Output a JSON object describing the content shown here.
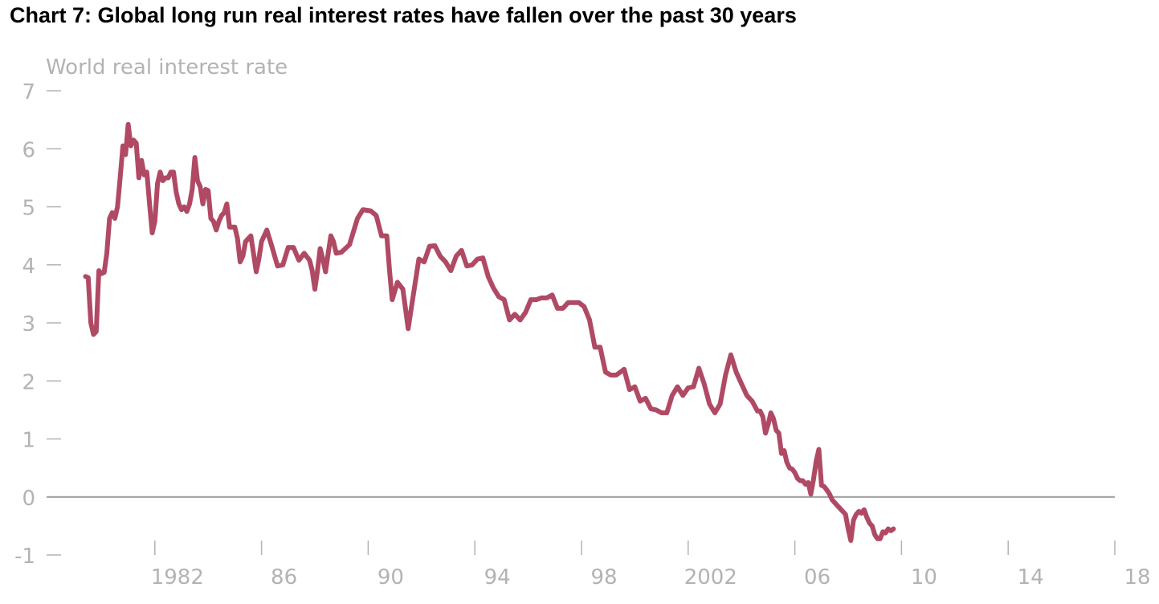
{
  "title": "Chart 7:  Global long run real interest rates have fallen over the past 30 years",
  "chart_data": {
    "type": "line",
    "ylabel": "World real interest rate",
    "ylim": [
      -1,
      7
    ],
    "yticks": [
      7,
      6,
      5,
      4,
      3,
      2,
      1,
      0,
      -1
    ],
    "xlim": [
      1978,
      2018
    ],
    "xticks": [
      {
        "value": 1982,
        "label": "1982"
      },
      {
        "value": 1986,
        "label": "86"
      },
      {
        "value": 1990,
        "label": "90"
      },
      {
        "value": 1994,
        "label": "94"
      },
      {
        "value": 1998,
        "label": "98"
      },
      {
        "value": 2002,
        "label": "2002"
      },
      {
        "value": 2006,
        "label": "06"
      },
      {
        "value": 2010,
        "label": "10"
      },
      {
        "value": 2014,
        "label": "14"
      },
      {
        "value": 2018,
        "label": "18"
      }
    ],
    "zero_line": true,
    "colors": {
      "line": "#b04a64",
      "zero_line": "#999999",
      "ticks": "#b3b3b3"
    },
    "series": [
      {
        "name": "",
        "points": [
          [
            1979.4,
            3.8
          ],
          [
            1979.5,
            3.78
          ],
          [
            1979.6,
            3.0
          ],
          [
            1979.7,
            2.8
          ],
          [
            1979.8,
            2.85
          ],
          [
            1979.9,
            3.9
          ],
          [
            1980.0,
            3.85
          ],
          [
            1980.1,
            3.87
          ],
          [
            1980.2,
            4.2
          ],
          [
            1980.3,
            4.8
          ],
          [
            1980.4,
            4.9
          ],
          [
            1980.5,
            4.8
          ],
          [
            1980.6,
            5.0
          ],
          [
            1980.7,
            5.5
          ],
          [
            1980.8,
            6.05
          ],
          [
            1980.9,
            5.9
          ],
          [
            1981.0,
            6.42
          ],
          [
            1981.1,
            6.05
          ],
          [
            1981.2,
            6.15
          ],
          [
            1981.3,
            6.1
          ],
          [
            1981.4,
            5.5
          ],
          [
            1981.5,
            5.8
          ],
          [
            1981.6,
            5.55
          ],
          [
            1981.7,
            5.6
          ],
          [
            1981.8,
            5.05
          ],
          [
            1981.9,
            4.55
          ],
          [
            1982.0,
            4.75
          ],
          [
            1982.1,
            5.4
          ],
          [
            1982.2,
            5.6
          ],
          [
            1982.3,
            5.45
          ],
          [
            1982.4,
            5.5
          ],
          [
            1982.5,
            5.5
          ],
          [
            1982.6,
            5.6
          ],
          [
            1982.7,
            5.6
          ],
          [
            1982.8,
            5.25
          ],
          [
            1982.9,
            5.05
          ],
          [
            1983.0,
            4.95
          ],
          [
            1983.1,
            5.0
          ],
          [
            1983.2,
            4.92
          ],
          [
            1983.3,
            5.05
          ],
          [
            1983.4,
            5.3
          ],
          [
            1983.5,
            5.85
          ],
          [
            1983.6,
            5.45
          ],
          [
            1983.7,
            5.35
          ],
          [
            1983.8,
            5.05
          ],
          [
            1983.9,
            5.3
          ],
          [
            1984.0,
            5.28
          ],
          [
            1984.1,
            4.8
          ],
          [
            1984.2,
            4.75
          ],
          [
            1984.3,
            4.6
          ],
          [
            1984.4,
            4.75
          ],
          [
            1984.5,
            4.85
          ],
          [
            1984.6,
            4.9
          ],
          [
            1984.7,
            5.05
          ],
          [
            1984.8,
            4.65
          ],
          [
            1984.9,
            4.65
          ],
          [
            1985.0,
            4.65
          ],
          [
            1985.1,
            4.45
          ],
          [
            1985.2,
            4.05
          ],
          [
            1985.3,
            4.15
          ],
          [
            1985.4,
            4.4
          ],
          [
            1985.5,
            4.45
          ],
          [
            1985.6,
            4.5
          ],
          [
            1985.7,
            4.2
          ],
          [
            1985.8,
            3.88
          ],
          [
            1985.9,
            4.1
          ],
          [
            1986.0,
            4.4
          ],
          [
            1986.2,
            4.6
          ],
          [
            1986.4,
            4.3
          ],
          [
            1986.6,
            3.98
          ],
          [
            1986.8,
            4.0
          ],
          [
            1987.0,
            4.3
          ],
          [
            1987.2,
            4.3
          ],
          [
            1987.4,
            4.08
          ],
          [
            1987.6,
            4.2
          ],
          [
            1987.8,
            4.08
          ],
          [
            1987.9,
            3.9
          ],
          [
            1988.0,
            3.58
          ],
          [
            1988.1,
            3.9
          ],
          [
            1988.2,
            4.28
          ],
          [
            1988.3,
            4.1
          ],
          [
            1988.4,
            3.88
          ],
          [
            1988.5,
            4.2
          ],
          [
            1988.6,
            4.5
          ],
          [
            1988.7,
            4.4
          ],
          [
            1988.8,
            4.2
          ],
          [
            1989.0,
            4.22
          ],
          [
            1989.3,
            4.35
          ],
          [
            1989.6,
            4.8
          ],
          [
            1989.8,
            4.95
          ],
          [
            1990.1,
            4.93
          ],
          [
            1990.3,
            4.85
          ],
          [
            1990.5,
            4.5
          ],
          [
            1990.7,
            4.5
          ],
          [
            1990.8,
            3.9
          ],
          [
            1990.9,
            3.4
          ],
          [
            1991.1,
            3.7
          ],
          [
            1991.3,
            3.58
          ],
          [
            1991.5,
            2.9
          ],
          [
            1991.7,
            3.5
          ],
          [
            1991.9,
            4.1
          ],
          [
            1992.1,
            4.05
          ],
          [
            1992.3,
            4.32
          ],
          [
            1992.5,
            4.33
          ],
          [
            1992.7,
            4.15
          ],
          [
            1992.9,
            4.05
          ],
          [
            1993.1,
            3.9
          ],
          [
            1993.3,
            4.15
          ],
          [
            1993.5,
            4.25
          ],
          [
            1993.7,
            3.98
          ],
          [
            1993.9,
            4.0
          ],
          [
            1994.1,
            4.1
          ],
          [
            1994.3,
            4.12
          ],
          [
            1994.5,
            3.8
          ],
          [
            1994.7,
            3.6
          ],
          [
            1994.9,
            3.45
          ],
          [
            1995.1,
            3.4
          ],
          [
            1995.3,
            3.05
          ],
          [
            1995.5,
            3.15
          ],
          [
            1995.7,
            3.05
          ],
          [
            1995.9,
            3.18
          ],
          [
            1996.1,
            3.4
          ],
          [
            1996.3,
            3.4
          ],
          [
            1996.5,
            3.43
          ],
          [
            1996.7,
            3.43
          ],
          [
            1996.9,
            3.48
          ],
          [
            1997.1,
            3.25
          ],
          [
            1997.3,
            3.25
          ],
          [
            1997.5,
            3.35
          ],
          [
            1997.7,
            3.35
          ],
          [
            1997.9,
            3.35
          ],
          [
            1998.1,
            3.28
          ],
          [
            1998.3,
            3.05
          ],
          [
            1998.5,
            2.58
          ],
          [
            1998.7,
            2.58
          ],
          [
            1998.9,
            2.15
          ],
          [
            1999.1,
            2.1
          ],
          [
            1999.3,
            2.1
          ],
          [
            1999.6,
            2.2
          ],
          [
            1999.8,
            1.85
          ],
          [
            2000.0,
            1.9
          ],
          [
            2000.2,
            1.65
          ],
          [
            2000.4,
            1.7
          ],
          [
            2000.6,
            1.52
          ],
          [
            2000.8,
            1.5
          ],
          [
            2001.0,
            1.45
          ],
          [
            2001.2,
            1.45
          ],
          [
            2001.4,
            1.75
          ],
          [
            2001.6,
            1.9
          ],
          [
            2001.8,
            1.75
          ],
          [
            2002.0,
            1.88
          ],
          [
            2002.2,
            1.9
          ],
          [
            2002.4,
            2.22
          ],
          [
            2002.6,
            1.95
          ],
          [
            2002.8,
            1.6
          ],
          [
            2003.0,
            1.45
          ],
          [
            2003.2,
            1.6
          ],
          [
            2003.4,
            2.1
          ],
          [
            2003.6,
            2.45
          ],
          [
            2003.8,
            2.15
          ],
          [
            2004.0,
            1.95
          ],
          [
            2004.2,
            1.75
          ],
          [
            2004.4,
            1.65
          ],
          [
            2004.6,
            1.48
          ],
          [
            2004.7,
            1.48
          ],
          [
            2004.8,
            1.38
          ],
          [
            2004.9,
            1.1
          ],
          [
            2005.0,
            1.25
          ],
          [
            2005.1,
            1.45
          ],
          [
            2005.2,
            1.35
          ],
          [
            2005.3,
            1.15
          ],
          [
            2005.4,
            1.1
          ],
          [
            2005.5,
            0.75
          ],
          [
            2005.6,
            0.8
          ],
          [
            2005.7,
            0.6
          ],
          [
            2005.8,
            0.5
          ],
          [
            2005.9,
            0.48
          ],
          [
            2006.0,
            0.42
          ],
          [
            2006.1,
            0.32
          ],
          [
            2006.2,
            0.28
          ],
          [
            2006.3,
            0.28
          ],
          [
            2006.4,
            0.22
          ],
          [
            2006.5,
            0.25
          ],
          [
            2006.6,
            0.05
          ],
          [
            2006.7,
            0.3
          ],
          [
            2006.8,
            0.62
          ],
          [
            2006.9,
            0.82
          ],
          [
            2007.0,
            0.2
          ],
          [
            2007.1,
            0.18
          ],
          [
            2007.2,
            0.12
          ],
          [
            2007.3,
            0.05
          ],
          [
            2007.4,
            -0.05
          ],
          [
            2007.5,
            -0.1
          ],
          [
            2007.6,
            -0.15
          ],
          [
            2007.7,
            -0.2
          ],
          [
            2007.8,
            -0.25
          ],
          [
            2007.9,
            -0.3
          ],
          [
            2008.0,
            -0.55
          ],
          [
            2008.1,
            -0.75
          ],
          [
            2008.2,
            -0.4
          ],
          [
            2008.3,
            -0.3
          ],
          [
            2008.4,
            -0.25
          ],
          [
            2008.5,
            -0.28
          ],
          [
            2008.6,
            -0.22
          ],
          [
            2008.7,
            -0.35
          ],
          [
            2008.8,
            -0.45
          ],
          [
            2008.9,
            -0.5
          ],
          [
            2009.0,
            -0.65
          ],
          [
            2009.1,
            -0.72
          ],
          [
            2009.2,
            -0.72
          ],
          [
            2009.3,
            -0.6
          ],
          [
            2009.4,
            -0.62
          ],
          [
            2009.5,
            -0.55
          ],
          [
            2009.6,
            -0.58
          ],
          [
            2009.7,
            -0.55
          ]
        ]
      }
    ]
  }
}
